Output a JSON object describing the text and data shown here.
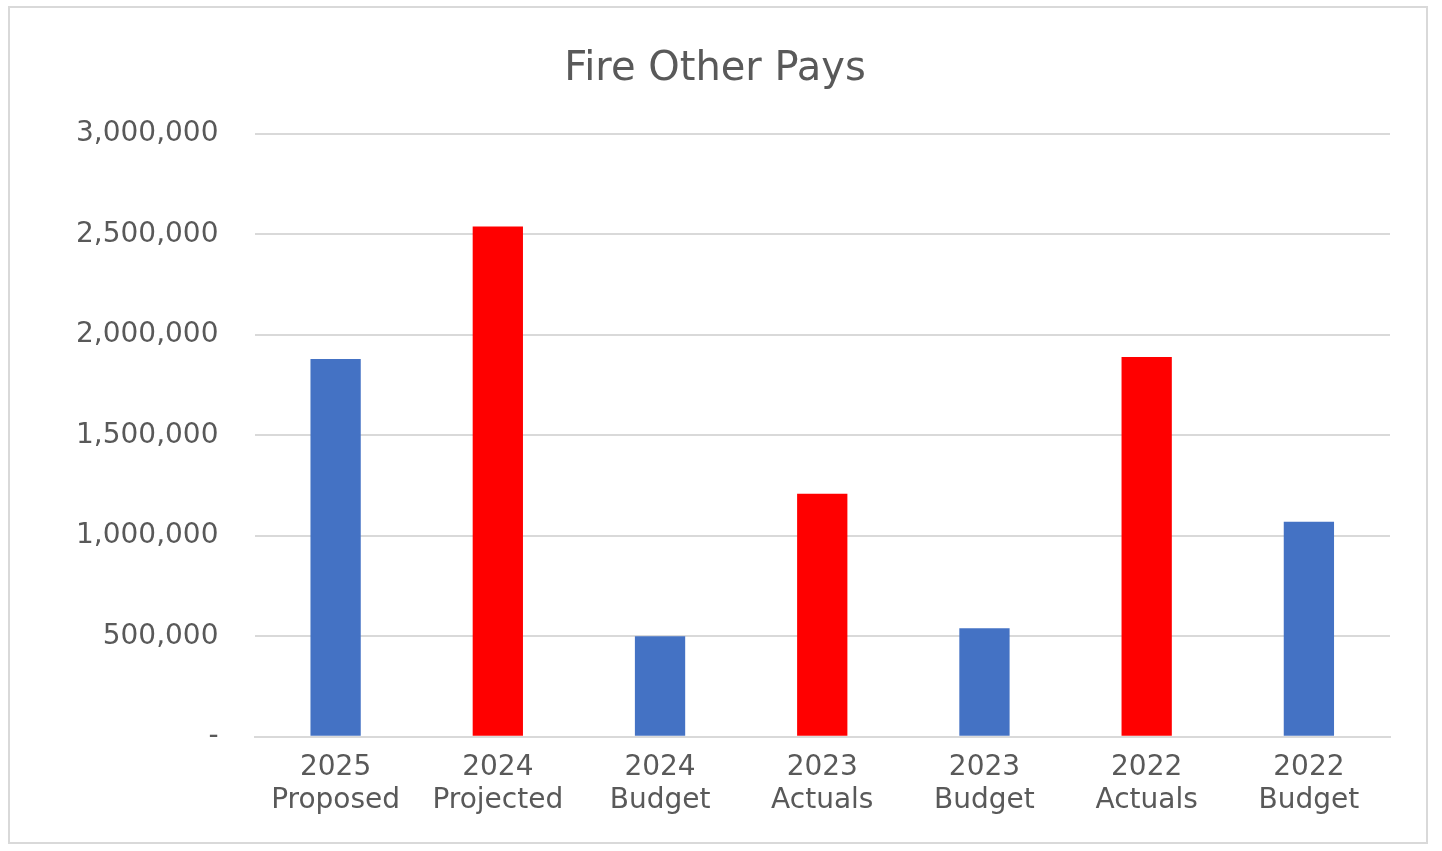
{
  "chart_data": {
    "type": "bar",
    "title": "Fire Other Pays",
    "categories": [
      "2025 Proposed",
      "2024 Projected",
      "2024 Budget",
      "2023 Actuals",
      "2023 Budget",
      "2022 Actuals",
      "2022 Budget"
    ],
    "values": [
      1880000,
      2540000,
      500000,
      1210000,
      540000,
      1890000,
      1070000
    ],
    "colors": [
      "#4472c4",
      "#ff0000",
      "#4472c4",
      "#ff0000",
      "#4472c4",
      "#ff0000",
      "#4472c4"
    ],
    "ylim": [
      0,
      3000000
    ],
    "yticks": [
      {
        "value": 0,
        "label": "-"
      },
      {
        "value": 500000,
        "label": "500,000"
      },
      {
        "value": 1000000,
        "label": "1,000,000"
      },
      {
        "value": 1500000,
        "label": "1,500,000"
      },
      {
        "value": 2000000,
        "label": "2,000,000"
      },
      {
        "value": 2500000,
        "label": "2,500,000"
      },
      {
        "value": 3000000,
        "label": "3,000,000"
      }
    ],
    "grid": "y",
    "legend": false
  }
}
